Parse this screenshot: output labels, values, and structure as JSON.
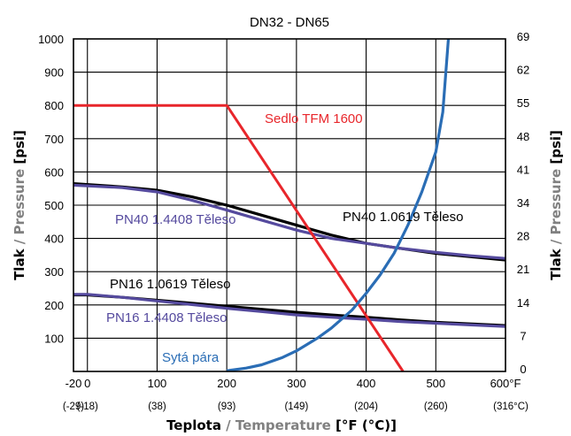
{
  "chart_data": {
    "type": "line",
    "title": "DN32 - DN65",
    "xlabel": {
      "a": "Teplota",
      "sep": " / ",
      "b": "Temperature",
      "c": " [°F (°C)]"
    },
    "ylabel_left": {
      "a": "Tlak",
      "sep": " / ",
      "b": "Pressure",
      "c": " [psi]"
    },
    "ylabel_right": {
      "a": "Tlak",
      "sep": " / ",
      "b": "Pressure",
      "c": " [psi]"
    },
    "xlim": [
      -20,
      600
    ],
    "ylim": [
      0,
      1000
    ],
    "x_ticks": [
      "-20",
      "0",
      "100",
      "200",
      "300",
      "400",
      "500",
      "600"
    ],
    "x_ticks_values": [
      -20,
      0,
      100,
      200,
      300,
      400,
      500,
      600
    ],
    "x_unit": "°F",
    "x_sub_ticks": [
      "(-29)",
      "(-18)",
      "(38)",
      "(93)",
      "(149)",
      "(204)",
      "(260)",
      "(316°C)"
    ],
    "y_ticks_left": [
      "100",
      "200",
      "300",
      "400",
      "500",
      "600",
      "700",
      "800",
      "900",
      "1000"
    ],
    "y_ticks_left_values": [
      100,
      200,
      300,
      400,
      500,
      600,
      700,
      800,
      900,
      1000
    ],
    "y_ticks_right": [
      "0",
      "7",
      "14",
      "21",
      "28",
      "34",
      "41",
      "48",
      "55",
      "62",
      "69"
    ],
    "y_ticks_right_values": [
      0,
      100,
      200,
      300,
      400,
      500,
      600,
      700,
      800,
      900,
      1000
    ],
    "grid": true,
    "series": [
      {
        "name": "Sedlo TFM 1600",
        "color": "#e8262b",
        "width": 3,
        "x": [
          -20,
          200,
          453
        ],
        "y": [
          800,
          800,
          0
        ]
      },
      {
        "name": "PN40 1.0619 Těleso",
        "color": "#000000",
        "width": 3.2,
        "x": [
          -20,
          50,
          100,
          150,
          200,
          250,
          300,
          350,
          400,
          450,
          500,
          550,
          600
        ],
        "y": [
          565,
          555,
          545,
          525,
          500,
          470,
          440,
          410,
          385,
          370,
          355,
          345,
          335
        ]
      },
      {
        "name": "PN40 1.4408 Těleso",
        "color": "#554a9e",
        "width": 3.2,
        "x": [
          -20,
          50,
          100,
          150,
          200,
          250,
          300,
          350,
          400,
          450,
          500,
          550,
          600
        ],
        "y": [
          560,
          553,
          540,
          515,
          485,
          455,
          425,
          400,
          385,
          370,
          358,
          348,
          340
        ]
      },
      {
        "name": "PN16 1.0619 Těleso",
        "color": "#000000",
        "width": 3.2,
        "x": [
          -20,
          0,
          50,
          100,
          150,
          200,
          250,
          300,
          350,
          400,
          450,
          500,
          550,
          600
        ],
        "y": [
          230,
          230,
          223,
          214,
          205,
          196,
          187,
          178,
          170,
          163,
          155,
          148,
          143,
          138
        ]
      },
      {
        "name": "PN16 1.4408 Těleso",
        "color": "#554a9e",
        "width": 3.2,
        "x": [
          -20,
          0,
          50,
          100,
          150,
          200,
          250,
          300,
          350,
          400,
          450,
          500,
          550,
          600
        ],
        "y": [
          232,
          232,
          223,
          212,
          201,
          190,
          180,
          170,
          163,
          157,
          150,
          145,
          140,
          135
        ]
      },
      {
        "name": "Sytá pára",
        "color": "#2a6db5",
        "width": 3.2,
        "x": [
          200,
          228,
          250,
          280,
          300,
          330,
          350,
          380,
          400,
          420,
          440,
          460,
          480,
          500,
          510,
          518
        ],
        "y": [
          2,
          10,
          20,
          42,
          62,
          100,
          130,
          185,
          235,
          290,
          355,
          440,
          540,
          660,
          780,
          1000
        ]
      }
    ],
    "labels": [
      {
        "series": 0,
        "text": "Sedlo TFM 1600"
      },
      {
        "series": 1,
        "text": "PN40 1.0619 Těleso"
      },
      {
        "series": 2,
        "text": "PN40 1.4408 Těleso"
      },
      {
        "series": 3,
        "text": "PN16 1.0619 Těleso"
      },
      {
        "series": 4,
        "text": "PN16 1.4408 Těleso"
      },
      {
        "series": 5,
        "text": "Sytá pára"
      }
    ],
    "colors": {
      "label_gray": "#808080",
      "label_black": "#000000"
    }
  }
}
